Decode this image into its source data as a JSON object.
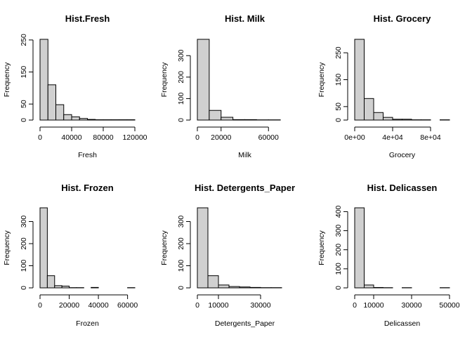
{
  "chart_data": [
    {
      "type": "bar",
      "title": "Hist.Fresh",
      "xlabel": "Fresh",
      "ylabel": "Frequency",
      "bin_width": 10000,
      "bin_start": 0,
      "values": [
        252,
        110,
        48,
        17,
        10,
        5,
        2,
        1,
        1,
        1,
        1,
        1
      ],
      "xticks": [
        0,
        40000,
        80000,
        120000
      ],
      "xtick_labels": [
        "0",
        "40000",
        "80000",
        "120000"
      ],
      "yticks": [
        0,
        50,
        150,
        250
      ],
      "ytick_labels": [
        "0",
        "50",
        "150",
        "250"
      ],
      "xlim": [
        0,
        120000
      ],
      "ylim": [
        0,
        252
      ]
    },
    {
      "type": "bar",
      "title": "Hist. Milk",
      "xlabel": "Milk",
      "ylabel": "Frequency",
      "bin_width": 10000,
      "bin_start": 0,
      "values": [
        376,
        45,
        13,
        2,
        2,
        1,
        1,
        0
      ],
      "xticks": [
        0,
        20000,
        60000
      ],
      "xtick_labels": [
        "0",
        "20000",
        "60000"
      ],
      "yticks": [
        0,
        100,
        200,
        300
      ],
      "ytick_labels": [
        "0",
        "100",
        "200",
        "300"
      ],
      "xlim": [
        0,
        80000
      ],
      "ylim": [
        0,
        376
      ]
    },
    {
      "type": "bar",
      "title": "Hist. Grocery",
      "xlabel": "Grocery",
      "ylabel": "Frequency",
      "bin_width": 10000,
      "bin_start": 0,
      "values": [
        300,
        80,
        28,
        10,
        3,
        3,
        1,
        1,
        0,
        1
      ],
      "xticks": [
        0,
        40000,
        80000
      ],
      "xtick_labels": [
        "0e+00",
        "4e+04",
        "8e+04"
      ],
      "yticks": [
        0,
        50,
        150,
        250
      ],
      "ytick_labels": [
        "0",
        "50",
        "150",
        "250"
      ],
      "xlim": [
        0,
        100000
      ],
      "ylim": [
        0,
        300
      ]
    },
    {
      "type": "bar",
      "title": "Hist. Frozen",
      "xlabel": "Frozen",
      "ylabel": "Frequency",
      "bin_width": 5000,
      "bin_start": 0,
      "values": [
        362,
        55,
        10,
        8,
        1,
        1,
        0,
        2,
        0,
        0,
        0,
        0,
        1
      ],
      "xticks": [
        0,
        20000,
        40000,
        60000
      ],
      "xtick_labels": [
        "0",
        "20000",
        "40000",
        "60000"
      ],
      "yticks": [
        0,
        100,
        200,
        300
      ],
      "ytick_labels": [
        "0",
        "100",
        "200",
        "300"
      ],
      "xlim": [
        0,
        65000
      ],
      "ylim": [
        0,
        362
      ]
    },
    {
      "type": "bar",
      "title": "Hist. Detergents_Paper",
      "xlabel": "Detergents_Paper",
      "ylabel": "Frequency",
      "bin_width": 5000,
      "bin_start": 0,
      "values": [
        362,
        55,
        13,
        6,
        4,
        2,
        1,
        1,
        0
      ],
      "xticks": [
        0,
        10000,
        30000
      ],
      "xtick_labels": [
        "0",
        "10000",
        "30000"
      ],
      "yticks": [
        0,
        100,
        200,
        300
      ],
      "ytick_labels": [
        "0",
        "100",
        "200",
        "300"
      ],
      "xlim": [
        0,
        45000
      ],
      "ylim": [
        0,
        362
      ]
    },
    {
      "type": "bar",
      "title": "Hist. Delicassen",
      "xlabel": "Delicassen",
      "ylabel": "Frequency",
      "bin_width": 5000,
      "bin_start": 0,
      "values": [
        420,
        15,
        2,
        1,
        0,
        1,
        0,
        0,
        0,
        1
      ],
      "xticks": [
        0,
        10000,
        30000,
        50000
      ],
      "xtick_labels": [
        "0",
        "10000",
        "30000",
        "50000"
      ],
      "yticks": [
        0,
        100,
        200,
        300,
        400
      ],
      "ytick_labels": [
        "0",
        "100",
        "200",
        "300",
        "400"
      ],
      "xlim": [
        0,
        50000
      ],
      "ylim": [
        0,
        420
      ]
    }
  ]
}
